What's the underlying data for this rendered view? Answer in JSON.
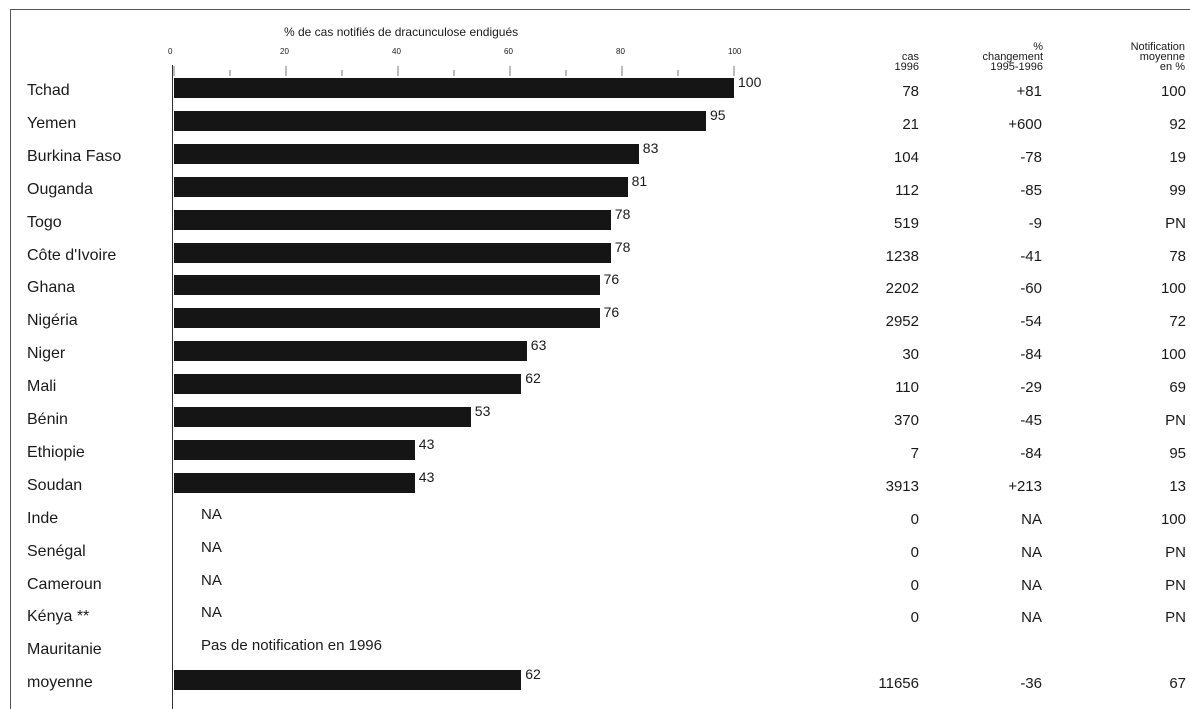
{
  "chart_data": {
    "type": "bar",
    "orientation": "horizontal",
    "title": "% de cas notifiés de dracunculose endigués",
    "x_ticks": [
      0,
      20,
      40,
      60,
      80,
      100
    ],
    "xlim": [
      0,
      100
    ],
    "column_headers": {
      "cases": [
        "cas",
        "1996"
      ],
      "change": [
        "%",
        "changement",
        "1995-1996"
      ],
      "notification": [
        "Notification",
        "moyenne",
        "en %"
      ]
    },
    "rows": [
      {
        "country": "Tchad",
        "value": 100,
        "label": "100",
        "cases": "78",
        "change": "+81",
        "notification": "100"
      },
      {
        "country": "Yemen",
        "value": 95,
        "label": "95",
        "cases": "21",
        "change": "+600",
        "notification": "92"
      },
      {
        "country": "Burkina Faso",
        "value": 83,
        "label": "83",
        "cases": "104",
        "change": "-78",
        "notification": "19"
      },
      {
        "country": "Ouganda",
        "value": 81,
        "label": "81",
        "cases": "112",
        "change": "-85",
        "notification": "99"
      },
      {
        "country": "Togo",
        "value": 78,
        "label": "78",
        "cases": "519",
        "change": "-9",
        "notification": "PN"
      },
      {
        "country": "Côte d'Ivoire",
        "value": 78,
        "label": "78",
        "cases": "1238",
        "change": "-41",
        "notification": "78"
      },
      {
        "country": "Ghana",
        "value": 76,
        "label": "76",
        "cases": "2202",
        "change": "-60",
        "notification": "100"
      },
      {
        "country": "Nigéria",
        "value": 76,
        "label": "76",
        "cases": "2952",
        "change": "-54",
        "notification": "72"
      },
      {
        "country": "Niger",
        "value": 63,
        "label": "63",
        "cases": "30",
        "change": "-84",
        "notification": "100"
      },
      {
        "country": "Mali",
        "value": 62,
        "label": "62",
        "cases": "110",
        "change": "-29",
        "notification": "69"
      },
      {
        "country": "Bénin",
        "value": 53,
        "label": "53",
        "cases": "370",
        "change": "-45",
        "notification": "PN"
      },
      {
        "country": "Ethiopie",
        "value": 43,
        "label": "43",
        "cases": "7",
        "change": "-84",
        "notification": "95"
      },
      {
        "country": "Soudan",
        "value": 43,
        "label": "43",
        "cases": "3913",
        "change": "+213",
        "notification": "13"
      },
      {
        "country": "Inde",
        "value": null,
        "label": "NA",
        "cases": "0",
        "change": "NA",
        "notification": "100"
      },
      {
        "country": "Senégal",
        "value": null,
        "label": "NA",
        "cases": "0",
        "change": "NA",
        "notification": "PN"
      },
      {
        "country": "Cameroun",
        "value": null,
        "label": "NA",
        "cases": "0",
        "change": "NA",
        "notification": "PN"
      },
      {
        "country": "Kénya **",
        "value": null,
        "label": "NA",
        "cases": "0",
        "change": "NA",
        "notification": "PN"
      },
      {
        "country": "Mauritanie",
        "value": null,
        "label": "Pas de notification en 1996",
        "cases": "",
        "change": "",
        "notification": ""
      },
      {
        "country": "moyenne",
        "value": 62,
        "label": "62",
        "cases": "11656",
        "change": "-36",
        "notification": "67"
      }
    ]
  }
}
